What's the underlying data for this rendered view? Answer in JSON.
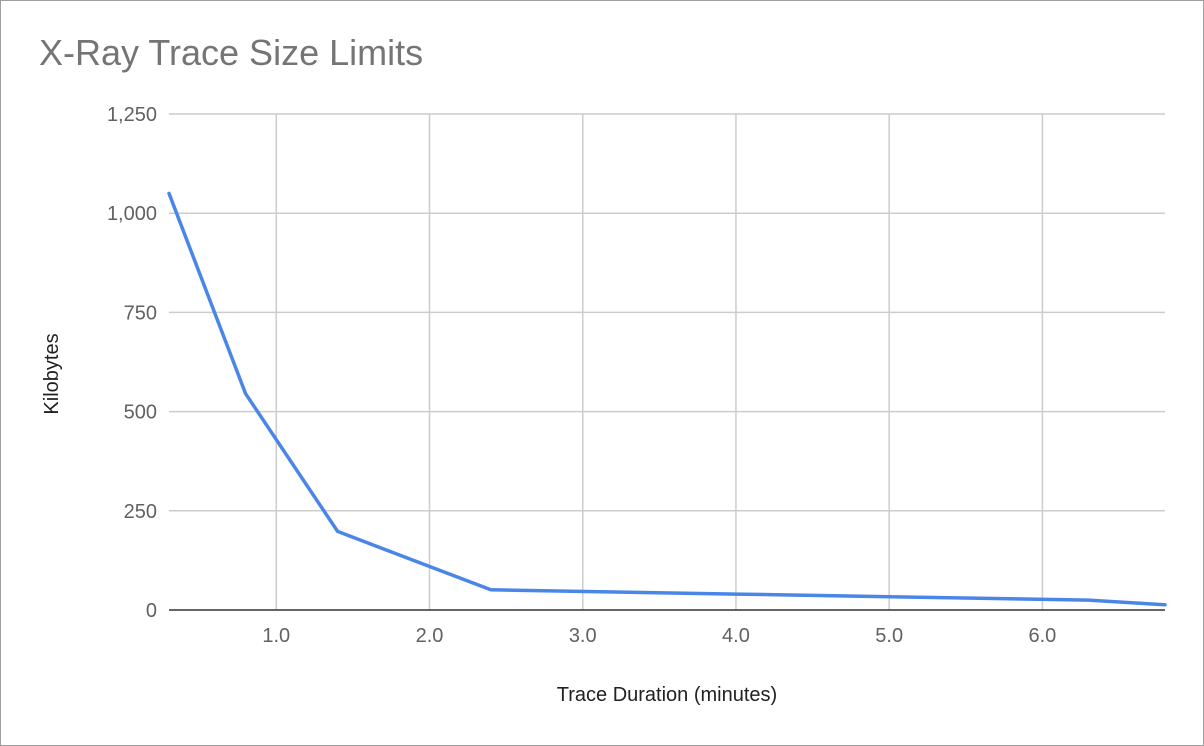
{
  "chart_data": {
    "type": "line",
    "title": "X-Ray Trace Size Limits",
    "xlabel": "Trace Duration (minutes)",
    "ylabel": "Kilobytes",
    "xlim": [
      0.3,
      6.8
    ],
    "ylim": [
      0,
      1250
    ],
    "x_ticks": [
      {
        "value": 1.0,
        "label": "1.0"
      },
      {
        "value": 2.0,
        "label": "2.0"
      },
      {
        "value": 3.0,
        "label": "3.0"
      },
      {
        "value": 4.0,
        "label": "4.0"
      },
      {
        "value": 5.0,
        "label": "5.0"
      },
      {
        "value": 6.0,
        "label": "6.0"
      }
    ],
    "y_ticks": [
      {
        "value": 0,
        "label": "0"
      },
      {
        "value": 250,
        "label": "250"
      },
      {
        "value": 500,
        "label": "500"
      },
      {
        "value": 750,
        "label": "750"
      },
      {
        "value": 1000,
        "label": "1,000"
      },
      {
        "value": 1250,
        "label": "1,250"
      }
    ],
    "grid": true,
    "legend": "none",
    "series": [
      {
        "color": "#4a86e8",
        "points": [
          {
            "x": 0.3,
            "y": 1050
          },
          {
            "x": 0.8,
            "y": 545
          },
          {
            "x": 1.4,
            "y": 198
          },
          {
            "x": 2.4,
            "y": 51
          },
          {
            "x": 4.0,
            "y": 40
          },
          {
            "x": 6.3,
            "y": 25
          },
          {
            "x": 6.8,
            "y": 13
          }
        ]
      }
    ]
  },
  "style": {
    "grid_color": "#cccccc",
    "baseline_color": "#333333"
  }
}
